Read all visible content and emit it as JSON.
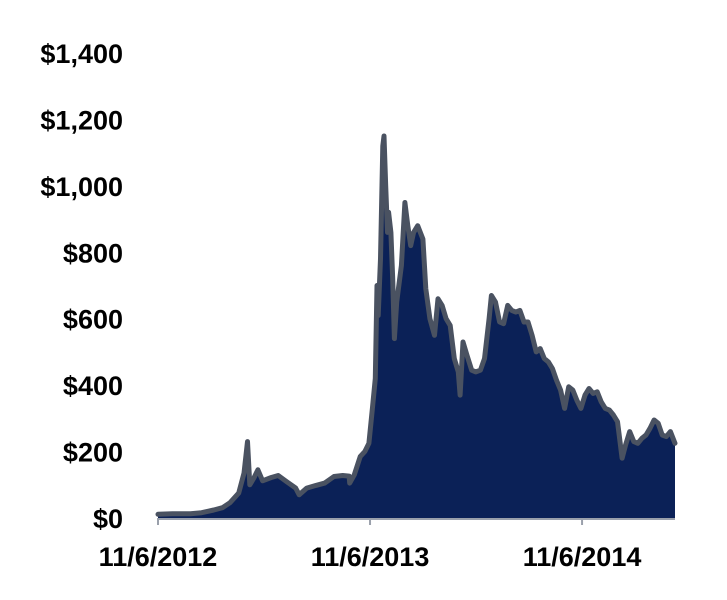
{
  "chart_data": {
    "type": "area",
    "title": "",
    "xlabel": "",
    "ylabel": "",
    "ylim": [
      0,
      1400
    ],
    "yticks": [
      {
        "value": 0,
        "label": "$0"
      },
      {
        "value": 200,
        "label": "$200"
      },
      {
        "value": 400,
        "label": "$400"
      },
      {
        "value": 600,
        "label": "$600"
      },
      {
        "value": 800,
        "label": "$800"
      },
      {
        "value": 1000,
        "label": "$1,000"
      },
      {
        "value": 1200,
        "label": "$1,200"
      },
      {
        "value": 1400,
        "label": "$1,400"
      }
    ],
    "xticks": [
      {
        "date": "2012-11-06",
        "label": "11/6/2012"
      },
      {
        "date": "2013-11-06",
        "label": "11/6/2013"
      },
      {
        "date": "2014-11-06",
        "label": "11/6/2014"
      }
    ],
    "xlim": [
      "2012-11-06",
      "2015-04-15"
    ],
    "grid": false,
    "legend": "none",
    "colors": {
      "fill": "#0b2157",
      "line": "#4a5261",
      "axis": "#9aa0ab"
    },
    "series": [
      {
        "values": [
          [
            "2012-11-06",
            11
          ],
          [
            "2012-12-01",
            13
          ],
          [
            "2013-01-01",
            13
          ],
          [
            "2013-01-20",
            16
          ],
          [
            "2013-02-10",
            24
          ],
          [
            "2013-02-25",
            31
          ],
          [
            "2013-03-10",
            46
          ],
          [
            "2013-03-25",
            75
          ],
          [
            "2013-04-03",
            135
          ],
          [
            "2013-04-09",
            230
          ],
          [
            "2013-04-13",
            100
          ],
          [
            "2013-04-20",
            120
          ],
          [
            "2013-04-27",
            145
          ],
          [
            "2013-05-05",
            112
          ],
          [
            "2013-05-20",
            122
          ],
          [
            "2013-06-01",
            128
          ],
          [
            "2013-06-15",
            110
          ],
          [
            "2013-07-01",
            90
          ],
          [
            "2013-07-07",
            70
          ],
          [
            "2013-07-20",
            90
          ],
          [
            "2013-08-05",
            98
          ],
          [
            "2013-08-20",
            105
          ],
          [
            "2013-09-05",
            125
          ],
          [
            "2013-09-20",
            128
          ],
          [
            "2013-10-01",
            126
          ],
          [
            "2013-10-02",
            105
          ],
          [
            "2013-10-10",
            130
          ],
          [
            "2013-10-20",
            185
          ],
          [
            "2013-10-28",
            200
          ],
          [
            "2013-11-04",
            225
          ],
          [
            "2013-11-10",
            330
          ],
          [
            "2013-11-15",
            420
          ],
          [
            "2013-11-18",
            700
          ],
          [
            "2013-11-20",
            610
          ],
          [
            "2013-11-24",
            780
          ],
          [
            "2013-11-28",
            1120
          ],
          [
            "2013-11-30",
            1150
          ],
          [
            "2013-12-03",
            1000
          ],
          [
            "2013-12-06",
            860
          ],
          [
            "2013-12-08",
            920
          ],
          [
            "2013-12-12",
            860
          ],
          [
            "2013-12-15",
            720
          ],
          [
            "2013-12-18",
            540
          ],
          [
            "2013-12-22",
            650
          ],
          [
            "2013-12-30",
            760
          ],
          [
            "2014-01-05",
            950
          ],
          [
            "2014-01-10",
            880
          ],
          [
            "2014-01-15",
            820
          ],
          [
            "2014-01-20",
            860
          ],
          [
            "2014-01-27",
            880
          ],
          [
            "2014-02-05",
            840
          ],
          [
            "2014-02-10",
            690
          ],
          [
            "2014-02-17",
            600
          ],
          [
            "2014-02-25",
            550
          ],
          [
            "2014-03-03",
            660
          ],
          [
            "2014-03-10",
            640
          ],
          [
            "2014-03-17",
            600
          ],
          [
            "2014-03-24",
            580
          ],
          [
            "2014-03-31",
            480
          ],
          [
            "2014-04-07",
            440
          ],
          [
            "2014-04-10",
            370
          ],
          [
            "2014-04-15",
            530
          ],
          [
            "2014-04-22",
            490
          ],
          [
            "2014-04-30",
            445
          ],
          [
            "2014-05-07",
            440
          ],
          [
            "2014-05-15",
            445
          ],
          [
            "2014-05-22",
            480
          ],
          [
            "2014-05-30",
            600
          ],
          [
            "2014-06-03",
            670
          ],
          [
            "2014-06-10",
            650
          ],
          [
            "2014-06-17",
            590
          ],
          [
            "2014-06-24",
            585
          ],
          [
            "2014-07-01",
            640
          ],
          [
            "2014-07-08",
            625
          ],
          [
            "2014-07-15",
            620
          ],
          [
            "2014-07-22",
            625
          ],
          [
            "2014-07-29",
            590
          ],
          [
            "2014-08-05",
            590
          ],
          [
            "2014-08-12",
            550
          ],
          [
            "2014-08-19",
            500
          ],
          [
            "2014-08-26",
            510
          ],
          [
            "2014-09-02",
            480
          ],
          [
            "2014-09-09",
            470
          ],
          [
            "2014-09-16",
            450
          ],
          [
            "2014-09-23",
            415
          ],
          [
            "2014-09-30",
            385
          ],
          [
            "2014-10-07",
            330
          ],
          [
            "2014-10-14",
            395
          ],
          [
            "2014-10-21",
            385
          ],
          [
            "2014-10-28",
            355
          ],
          [
            "2014-11-04",
            330
          ],
          [
            "2014-11-11",
            370
          ],
          [
            "2014-11-18",
            390
          ],
          [
            "2014-11-25",
            375
          ],
          [
            "2014-12-02",
            380
          ],
          [
            "2014-12-09",
            350
          ],
          [
            "2014-12-16",
            330
          ],
          [
            "2014-12-23",
            325
          ],
          [
            "2014-12-30",
            310
          ],
          [
            "2015-01-06",
            290
          ],
          [
            "2015-01-14",
            180
          ],
          [
            "2015-01-20",
            220
          ],
          [
            "2015-01-27",
            260
          ],
          [
            "2015-02-03",
            230
          ],
          [
            "2015-02-10",
            225
          ],
          [
            "2015-02-17",
            240
          ],
          [
            "2015-02-24",
            250
          ],
          [
            "2015-03-03",
            270
          ],
          [
            "2015-03-10",
            295
          ],
          [
            "2015-03-17",
            285
          ],
          [
            "2015-03-24",
            250
          ],
          [
            "2015-03-31",
            245
          ],
          [
            "2015-04-07",
            260
          ],
          [
            "2015-04-15",
            225
          ]
        ]
      }
    ]
  }
}
